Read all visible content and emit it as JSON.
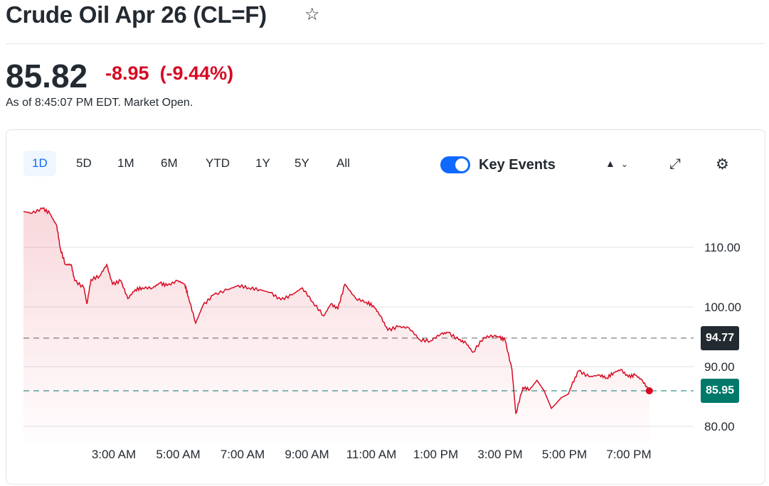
{
  "header": {
    "title": "Crude Oil Apr 26 (CL=F)",
    "price": "85.82",
    "change": "-8.95",
    "change_pct": "(-9.44%)",
    "as_of": "As of 8:45:07 PM EDT. Market Open."
  },
  "toolbar": {
    "ranges": [
      "1D",
      "5D",
      "1M",
      "6M",
      "YTD",
      "1Y",
      "5Y",
      "All"
    ],
    "active_range": "1D",
    "key_events_label": "Key Events",
    "key_events_on": true
  },
  "colors": {
    "line": "#d60a22",
    "prev_close": "#232a31",
    "current": "#00796b"
  },
  "chart_data": {
    "type": "line",
    "title": "Crude Oil Apr 26 (CL=F) 1D",
    "xlabel": "",
    "ylabel": "",
    "x_ticks": [
      "3:00 AM",
      "5:00 AM",
      "7:00 AM",
      "9:00 AM",
      "11:00 AM",
      "1:00 PM",
      "3:00 PM",
      "5:00 PM",
      "7:00 PM"
    ],
    "y_ticks": [
      "110.00",
      "100.00",
      "90.00",
      "80.00"
    ],
    "ylim": [
      78,
      117
    ],
    "x_hours_range": [
      0.18,
      17.9
    ],
    "prev_close_label": "94.77",
    "prev_close": 94.77,
    "current_label": "85.95",
    "current": 85.95,
    "series": [
      {
        "name": "CL=F",
        "x": [
          0.18,
          0.44,
          0.78,
          1.0,
          1.22,
          1.33,
          1.49,
          1.67,
          1.78,
          2.07,
          2.16,
          2.29,
          2.56,
          2.78,
          2.96,
          3.22,
          3.44,
          3.67,
          3.89,
          4.22,
          4.44,
          4.67,
          5.0,
          5.22,
          5.33,
          5.56,
          5.78,
          6.11,
          6.56,
          6.89,
          7.22,
          7.56,
          7.89,
          8.22,
          8.56,
          8.89,
          9.22,
          9.56,
          9.78,
          10.0,
          10.22,
          10.56,
          10.89,
          11.11,
          11.33,
          11.56,
          11.89,
          12.22,
          12.56,
          12.89,
          13.22,
          13.44,
          13.78,
          14.0,
          14.22,
          14.56,
          14.89,
          15.04,
          15.22,
          15.44,
          15.56,
          15.78,
          16.0,
          16.22,
          16.44,
          16.67,
          16.78,
          16.98,
          17.2,
          17.3,
          17.52,
          17.85,
          18.18,
          18.4,
          18.62,
          18.84,
          19.07,
          19.29,
          19.51,
          19.73
        ],
        "y": [
          116.0,
          115.7,
          116.5,
          115.7,
          113.6,
          109.8,
          107.1,
          107.1,
          104.4,
          103.2,
          100.5,
          104.6,
          105.2,
          107.1,
          103.8,
          104.4,
          101.4,
          102.9,
          103.2,
          103.2,
          104.0,
          103.6,
          104.4,
          103.8,
          101.7,
          97.3,
          100.2,
          102.0,
          102.9,
          103.6,
          103.2,
          102.9,
          102.4,
          101.2,
          102.0,
          103.2,
          100.8,
          98.5,
          100.5,
          99.7,
          103.8,
          101.4,
          100.8,
          100.2,
          98.5,
          96.1,
          96.7,
          96.5,
          94.5,
          94.3,
          95.5,
          95.7,
          94.5,
          94.0,
          92.4,
          94.9,
          95.2,
          94.9,
          94.5,
          89.5,
          82.1,
          86.5,
          86.2,
          87.7,
          86.0,
          83.0,
          83.6,
          84.8,
          85.4,
          86.8,
          89.3,
          88.3,
          88.6,
          88.1,
          89.0,
          89.5,
          88.3,
          88.6,
          87.7,
          85.9
        ]
      }
    ]
  }
}
